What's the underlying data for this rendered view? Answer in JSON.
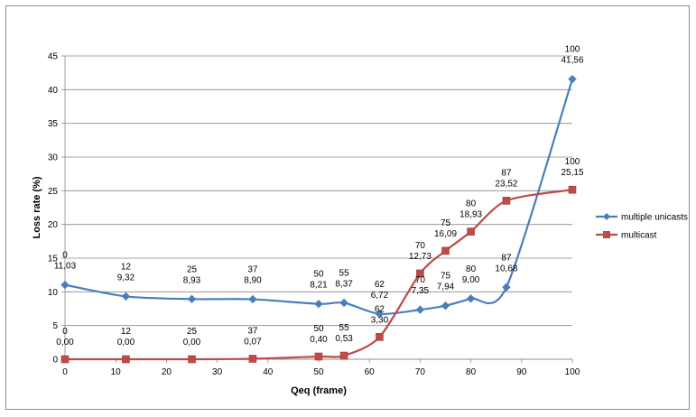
{
  "chart_data": {
    "type": "scatter",
    "title": "",
    "xlabel": "Qeq (frame)",
    "ylabel": "Loss rate (%)",
    "xlim": [
      0,
      100
    ],
    "ylim": [
      0,
      45
    ],
    "x_ticks": [
      "0",
      "10",
      "20",
      "30",
      "40",
      "50",
      "60",
      "70",
      "80",
      "90",
      "100"
    ],
    "y_ticks": [
      "0",
      "5",
      "10",
      "15",
      "20",
      "25",
      "30",
      "35",
      "40",
      "45"
    ],
    "grid": "horizontal",
    "legend_position": "right",
    "series": [
      {
        "name": "multiple unicasts",
        "color": "#4a7ebb",
        "marker": "diamond",
        "x": [
          0,
          12,
          25,
          37,
          50,
          55,
          62,
          70,
          75,
          80,
          87,
          100
        ],
        "y": [
          11.03,
          9.32,
          8.93,
          8.9,
          8.21,
          8.37,
          6.72,
          7.35,
          7.94,
          9.0,
          10.68,
          41.56
        ],
        "labels_x": [
          "0",
          "12",
          "25",
          "37",
          "50",
          "55",
          "62",
          "70",
          "75",
          "80",
          "87",
          "100"
        ],
        "labels_y": [
          "11,03",
          "9,32",
          "8,93",
          "8,90",
          "8,21",
          "8,37",
          "6,72",
          "7,35",
          "7,94",
          "9,00",
          "10,68",
          "41,56"
        ]
      },
      {
        "name": "multicast",
        "color": "#be4b48",
        "marker": "square",
        "x": [
          0,
          12,
          25,
          37,
          50,
          55,
          62,
          70,
          75,
          80,
          87,
          100
        ],
        "y": [
          0.0,
          0.0,
          0.0,
          0.07,
          0.4,
          0.53,
          3.3,
          12.73,
          16.09,
          18.93,
          23.52,
          25.15
        ],
        "labels_x": [
          "0",
          "12",
          "25",
          "37",
          "50",
          "55",
          "62",
          "70",
          "75",
          "80",
          "87",
          "100"
        ],
        "labels_y": [
          "0,00",
          "0,00",
          "0,00",
          "0,07",
          "0,40",
          "0,53",
          "3,30",
          "12,73",
          "16,09",
          "18,93",
          "23,52",
          "25,15"
        ]
      }
    ]
  }
}
